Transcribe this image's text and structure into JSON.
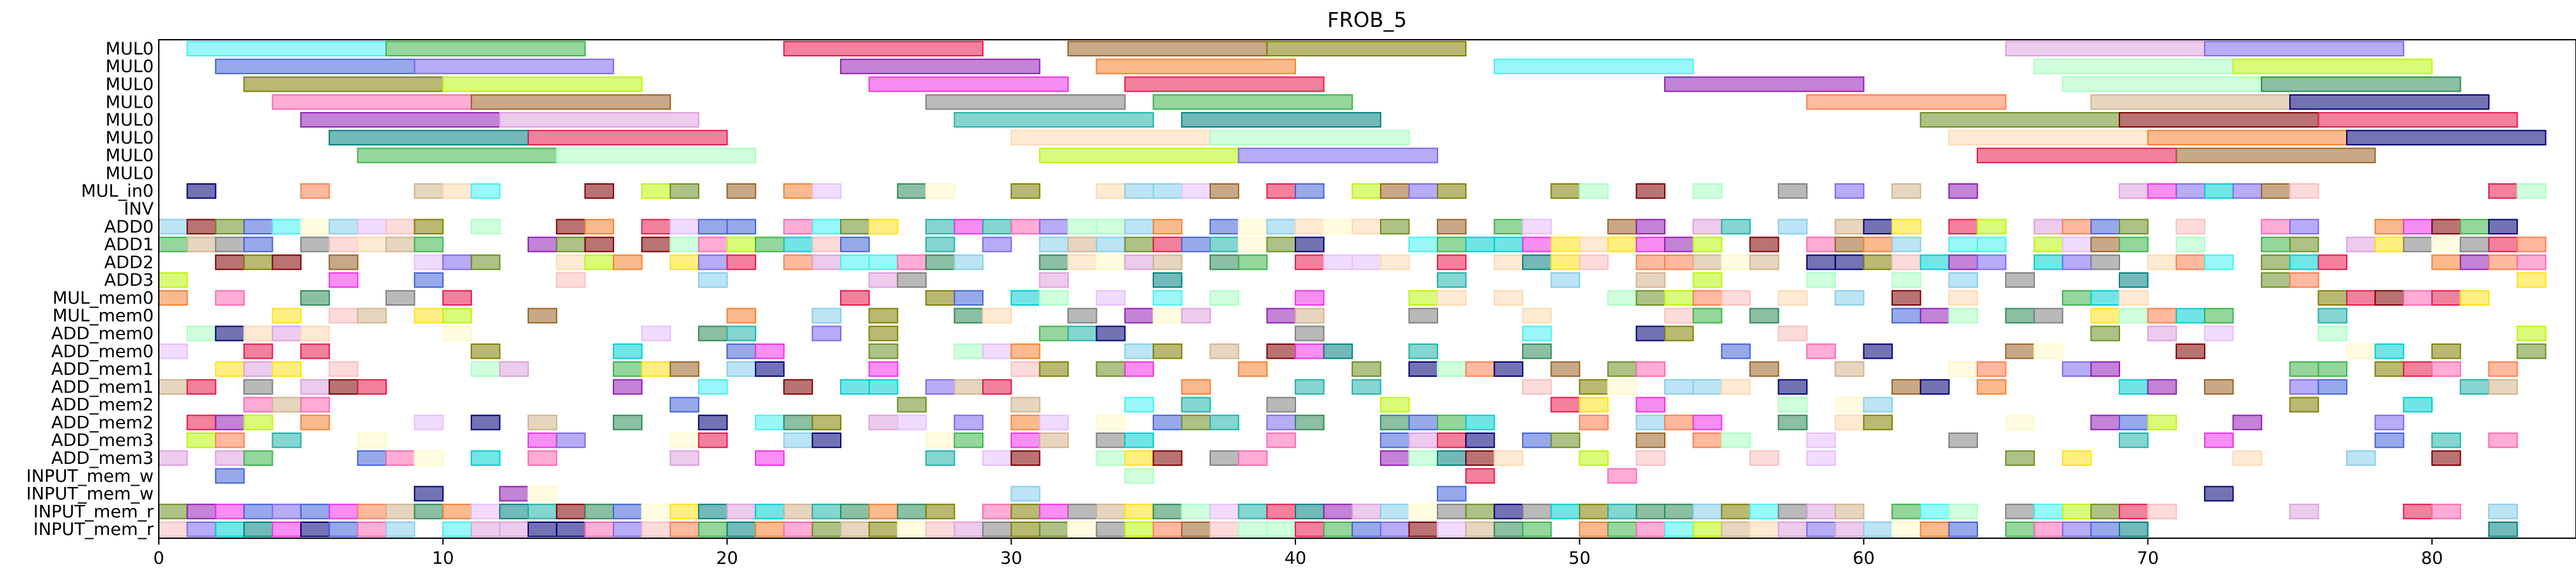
{
  "chart_data": {
    "type": "gantt",
    "title": "FROB_5",
    "xlabel": "",
    "ylabel": "",
    "xlim": [
      0,
      85
    ],
    "x_ticks": [
      0,
      10,
      20,
      30,
      40,
      50,
      60,
      70,
      80
    ],
    "rows": [
      "MUL0",
      "MUL0",
      "MUL0",
      "MUL0",
      "MUL0",
      "MUL0",
      "MUL0",
      "MUL0",
      "MUL_in0",
      "INV",
      "ADD0",
      "ADD1",
      "ADD2",
      "ADD3",
      "MUL_mem0",
      "MUL_mem0",
      "ADD_mem0",
      "ADD_mem0",
      "ADD_mem1",
      "ADD_mem1",
      "ADD_mem2",
      "ADD_mem2",
      "ADD_mem3",
      "ADD_mem3",
      "INPUT_mem_w",
      "INPUT_mem_w",
      "INPUT_mem_r",
      "INPUT_mem_r"
    ],
    "palette": [
      "#e6194b",
      "#3cb44b",
      "#ffe119",
      "#4363d8",
      "#f58231",
      "#911eb4",
      "#46f0f0",
      "#f032e6",
      "#bcf60c",
      "#fabebe",
      "#008080",
      "#e6beff",
      "#9a6324",
      "#fffac8",
      "#800000",
      "#aaffc3",
      "#808000",
      "#ffd8b1",
      "#000075",
      "#808080",
      "#87ceeb",
      "#ff69b4",
      "#2e8b57",
      "#d2b48c",
      "#7b68ee",
      "#00ced1",
      "#ff7f50",
      "#6b8e23",
      "#dda0dd",
      "#20b2aa"
    ],
    "bars": [
      {
        "row": 0,
        "start": 1,
        "end": 8,
        "c": 6
      },
      {
        "row": 0,
        "start": 8,
        "end": 15,
        "c": 1
      },
      {
        "row": 0,
        "start": 22,
        "end": 29,
        "c": 0
      },
      {
        "row": 0,
        "start": 32,
        "end": 39,
        "c": 12
      },
      {
        "row": 0,
        "start": 39,
        "end": 46,
        "c": 16
      },
      {
        "row": 0,
        "start": 65,
        "end": 72,
        "c": 28
      },
      {
        "row": 0,
        "start": 72,
        "end": 79,
        "c": 24
      },
      {
        "row": 1,
        "start": 2,
        "end": 9,
        "c": 3
      },
      {
        "row": 1,
        "start": 9,
        "end": 16,
        "c": 24
      },
      {
        "row": 1,
        "start": 24,
        "end": 31,
        "c": 5
      },
      {
        "row": 1,
        "start": 33,
        "end": 40,
        "c": 4
      },
      {
        "row": 1,
        "start": 47,
        "end": 54,
        "c": 6
      },
      {
        "row": 1,
        "start": 66,
        "end": 73,
        "c": 15
      },
      {
        "row": 1,
        "start": 73,
        "end": 80,
        "c": 8
      },
      {
        "row": 2,
        "start": 3,
        "end": 10,
        "c": 16
      },
      {
        "row": 2,
        "start": 10,
        "end": 17,
        "c": 8
      },
      {
        "row": 2,
        "start": 25,
        "end": 32,
        "c": 7
      },
      {
        "row": 2,
        "start": 34,
        "end": 41,
        "c": 0
      },
      {
        "row": 2,
        "start": 53,
        "end": 60,
        "c": 5
      },
      {
        "row": 2,
        "start": 67,
        "end": 74,
        "c": 15
      },
      {
        "row": 2,
        "start": 74,
        "end": 81,
        "c": 22
      },
      {
        "row": 3,
        "start": 4,
        "end": 11,
        "c": 21
      },
      {
        "row": 3,
        "start": 11,
        "end": 18,
        "c": 12
      },
      {
        "row": 3,
        "start": 27,
        "end": 34,
        "c": 19
      },
      {
        "row": 3,
        "start": 35,
        "end": 42,
        "c": 1
      },
      {
        "row": 3,
        "start": 58,
        "end": 65,
        "c": 26
      },
      {
        "row": 3,
        "start": 68,
        "end": 75,
        "c": 23
      },
      {
        "row": 3,
        "start": 75,
        "end": 82,
        "c": 18
      },
      {
        "row": 4,
        "start": 5,
        "end": 12,
        "c": 5
      },
      {
        "row": 4,
        "start": 12,
        "end": 19,
        "c": 28
      },
      {
        "row": 4,
        "start": 28,
        "end": 35,
        "c": 29
      },
      {
        "row": 4,
        "start": 36,
        "end": 43,
        "c": 10
      },
      {
        "row": 4,
        "start": 62,
        "end": 69,
        "c": 27
      },
      {
        "row": 4,
        "start": 69,
        "end": 76,
        "c": 14
      },
      {
        "row": 4,
        "start": 76,
        "end": 83,
        "c": 0
      },
      {
        "row": 5,
        "start": 6,
        "end": 13,
        "c": 10
      },
      {
        "row": 5,
        "start": 13,
        "end": 20,
        "c": 0
      },
      {
        "row": 5,
        "start": 30,
        "end": 37,
        "c": 17
      },
      {
        "row": 5,
        "start": 37,
        "end": 44,
        "c": 15
      },
      {
        "row": 5,
        "start": 63,
        "end": 70,
        "c": 17
      },
      {
        "row": 5,
        "start": 70,
        "end": 77,
        "c": 4
      },
      {
        "row": 5,
        "start": 77,
        "end": 84,
        "c": 18
      },
      {
        "row": 6,
        "start": 7,
        "end": 14,
        "c": 1
      },
      {
        "row": 6,
        "start": 14,
        "end": 21,
        "c": 15
      },
      {
        "row": 6,
        "start": 31,
        "end": 38,
        "c": 8
      },
      {
        "row": 6,
        "start": 38,
        "end": 45,
        "c": 24
      },
      {
        "row": 6,
        "start": 64,
        "end": 71,
        "c": 0
      },
      {
        "row": 6,
        "start": 71,
        "end": 78,
        "c": 12
      }
    ],
    "dense_rows": [
      8,
      10,
      11,
      12,
      13,
      14,
      15,
      16,
      17,
      18,
      19,
      20,
      21,
      22,
      23,
      24,
      25,
      26,
      27
    ],
    "unit_block_width": 1
  }
}
